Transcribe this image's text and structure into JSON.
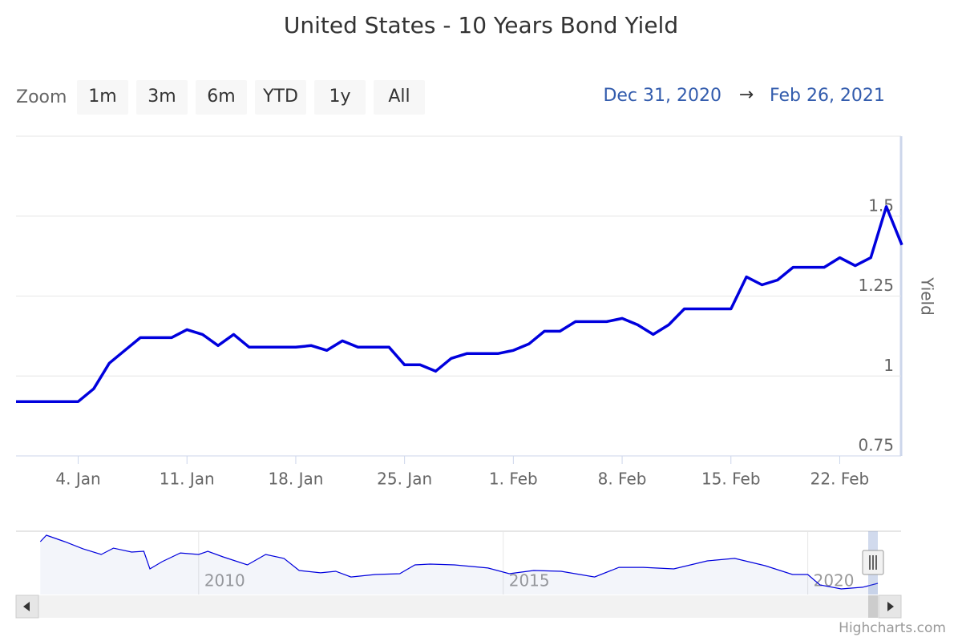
{
  "chart_data": {
    "type": "line",
    "title": "United States - 10 Years Bond Yield",
    "zoom_label": "Zoom",
    "zoom_buttons": [
      "1m",
      "3m",
      "6m",
      "YTD",
      "1y",
      "All"
    ],
    "range": {
      "from": "Dec 31, 2020",
      "arrow": "→",
      "to": "Feb 26, 2021"
    },
    "y_axis_title": "Yield",
    "credit": "Highcharts.com",
    "color": "#0000dd",
    "grid": true,
    "x": [
      "2020-12-31",
      "2021-01-04",
      "2021-01-05",
      "2021-01-06",
      "2021-01-07",
      "2021-01-08",
      "2021-01-10",
      "2021-01-11",
      "2021-01-12",
      "2021-01-13",
      "2021-01-14",
      "2021-01-15",
      "2021-01-18",
      "2021-01-19",
      "2021-01-20",
      "2021-01-21",
      "2021-01-22",
      "2021-01-24",
      "2021-01-25",
      "2021-01-26",
      "2021-01-27",
      "2021-01-28",
      "2021-01-29",
      "2021-01-31",
      "2021-02-01",
      "2021-02-02",
      "2021-02-03",
      "2021-02-04",
      "2021-02-05",
      "2021-02-07",
      "2021-02-08",
      "2021-02-09",
      "2021-02-10",
      "2021-02-11",
      "2021-02-12",
      "2021-02-15",
      "2021-02-16",
      "2021-02-17",
      "2021-02-18",
      "2021-02-19",
      "2021-02-21",
      "2021-02-22",
      "2021-02-23",
      "2021-02-24",
      "2021-02-25",
      "2021-02-26"
    ],
    "values": [
      0.92,
      0.92,
      0.96,
      1.04,
      1.08,
      1.12,
      1.12,
      1.145,
      1.13,
      1.095,
      1.13,
      1.09,
      1.09,
      1.095,
      1.08,
      1.11,
      1.09,
      1.09,
      1.035,
      1.035,
      1.015,
      1.055,
      1.07,
      1.07,
      1.08,
      1.1,
      1.14,
      1.14,
      1.17,
      1.17,
      1.18,
      1.16,
      1.13,
      1.16,
      1.21,
      1.21,
      1.31,
      1.285,
      1.3,
      1.34,
      1.34,
      1.37,
      1.345,
      1.37,
      1.53,
      1.41
    ],
    "xlim": [
      "2020-12-31",
      "2021-02-26"
    ],
    "xticks": [
      {
        "value": "2021-01-04",
        "label": "4. Jan"
      },
      {
        "value": "2021-01-11",
        "label": "11. Jan"
      },
      {
        "value": "2021-01-18",
        "label": "18. Jan"
      },
      {
        "value": "2021-01-25",
        "label": "25. Jan"
      },
      {
        "value": "2021-02-01",
        "label": "1. Feb"
      },
      {
        "value": "2021-02-08",
        "label": "8. Feb"
      },
      {
        "value": "2021-02-15",
        "label": "15. Feb"
      },
      {
        "value": "2021-02-22",
        "label": "22. Feb"
      }
    ],
    "ylim": [
      0.75,
      1.75
    ],
    "yticks": [
      0.75,
      1,
      1.25,
      1.5
    ],
    "navigator": {
      "x": [
        2007.4,
        2007.5,
        2007.8,
        2008.1,
        2008.4,
        2008.6,
        2008.9,
        2009.1,
        2009.2,
        2009.4,
        2009.7,
        2010.0,
        2010.15,
        2010.4,
        2010.8,
        2011.1,
        2011.4,
        2011.65,
        2012.0,
        2012.25,
        2012.5,
        2012.9,
        2013.3,
        2013.55,
        2013.8,
        2014.2,
        2014.75,
        2015.1,
        2015.5,
        2015.95,
        2016.5,
        2016.9,
        2017.3,
        2017.8,
        2018.35,
        2018.8,
        2019.3,
        2019.75,
        2020.0,
        2020.2,
        2020.55,
        2020.9,
        2021.1,
        2021.15
      ],
      "values": [
        4.61,
        5.16,
        4.61,
        4.0,
        3.52,
        4.06,
        3.72,
        3.79,
        2.29,
        2.9,
        3.65,
        3.52,
        3.79,
        3.31,
        2.63,
        3.52,
        3.18,
        2.15,
        1.95,
        2.08,
        1.6,
        1.81,
        1.88,
        2.63,
        2.7,
        2.63,
        2.36,
        1.88,
        2.15,
        2.08,
        1.6,
        2.42,
        2.42,
        2.29,
        2.97,
        3.18,
        2.56,
        1.81,
        1.81,
        0.92,
        0.58,
        0.72,
        0.99,
        1.06
      ],
      "xlim": [
        2007.37,
        2021.15
      ],
      "ylim": [
        0.1,
        5.5
      ],
      "xticks": [
        2010,
        2015,
        2020
      ]
    }
  }
}
